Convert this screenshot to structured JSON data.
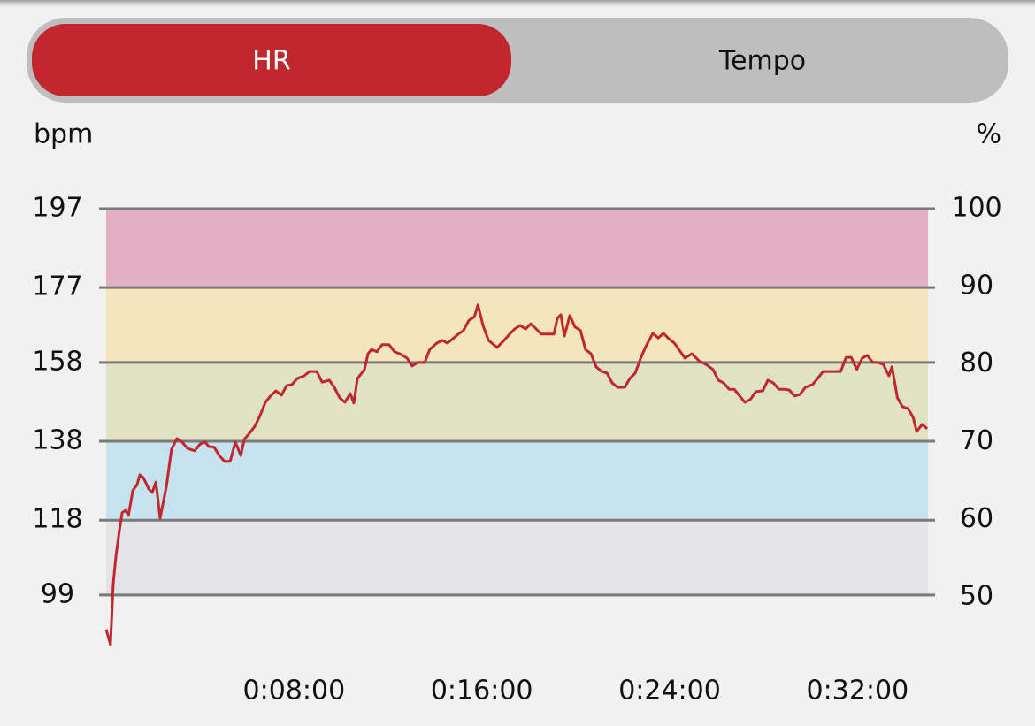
{
  "tabs": [
    "HR",
    "Tempo"
  ],
  "chart_data": {
    "type": "line",
    "y_label": "bpm",
    "y2_label": "%",
    "color": "#c0272f",
    "ylim": [
      78.8,
      197
    ],
    "yticks": [
      99,
      118,
      138,
      158,
      177,
      197
    ],
    "y2lim": [
      40,
      100
    ],
    "y2ticks": [
      50,
      60,
      70,
      80,
      90,
      100
    ],
    "xlim": [
      0,
      2100
    ],
    "xticks": [
      {
        "value": 480,
        "label": "0:08:00"
      },
      {
        "value": 960,
        "label": "0:16:00"
      },
      {
        "value": 1440,
        "label": "0:24:00"
      },
      {
        "value": 1920,
        "label": "0:32:00"
      }
    ],
    "grid": true,
    "zones": [
      {
        "from": 50,
        "to": 60,
        "color": "#e4e4e6"
      },
      {
        "from": 60,
        "to": 70,
        "color": "#c6e2ed"
      },
      {
        "from": 70,
        "to": 80,
        "color": "#dfe2c3"
      },
      {
        "from": 80,
        "to": 90,
        "color": "#f3e6bd"
      },
      {
        "from": 90,
        "to": 100,
        "color": "#e2afc2"
      }
    ],
    "x": [
      0,
      11,
      18,
      25,
      34,
      41,
      50,
      57,
      68,
      79,
      86,
      95,
      109,
      118,
      127,
      138,
      154,
      167,
      181,
      194,
      208,
      226,
      240,
      253,
      262,
      276,
      289,
      303,
      317,
      330,
      344,
      353,
      366,
      380,
      393,
      407,
      420,
      434,
      448,
      461,
      475,
      488,
      506,
      520,
      538,
      552,
      570,
      583,
      597,
      610,
      624,
      633,
      642,
      660,
      669,
      678,
      692,
      705,
      723,
      737,
      751,
      769,
      782,
      796,
      814,
      827,
      845,
      859,
      872,
      886,
      900,
      913,
      927,
      941,
      950,
      963,
      977,
      999,
      1017,
      1031,
      1044,
      1058,
      1072,
      1085,
      1099,
      1112,
      1130,
      1144,
      1153,
      1162,
      1171,
      1185,
      1198,
      1212,
      1225,
      1239,
      1252,
      1266,
      1280,
      1293,
      1307,
      1325,
      1338,
      1352,
      1366,
      1379,
      1397,
      1411,
      1424,
      1438,
      1452,
      1465,
      1479,
      1497,
      1515,
      1533,
      1551,
      1564,
      1578,
      1592,
      1605,
      1619,
      1632,
      1646,
      1660,
      1678,
      1691,
      1705,
      1719,
      1732,
      1746,
      1759,
      1773,
      1787,
      1805,
      1818,
      1832,
      1850,
      1863,
      1877,
      1891,
      1904,
      1918,
      1932,
      1945,
      1959,
      1972,
      1986,
      2000,
      2008,
      2022,
      2035,
      2049,
      2062,
      2071,
      2085,
      2098
    ],
    "values": [
      90.3,
      86.4,
      101.9,
      109,
      115.4,
      119.9,
      120.5,
      119.2,
      125.5,
      127,
      129.5,
      128.8,
      125.9,
      125,
      127.7,
      118.5,
      126.6,
      136,
      138.7,
      137.8,
      136.2,
      135.6,
      137.3,
      137.8,
      136.7,
      136.5,
      134.4,
      132.9,
      132.9,
      137.8,
      134.4,
      138.5,
      140,
      141.8,
      144.5,
      147.9,
      149.5,
      150.8,
      149.7,
      152.1,
      152.4,
      153.9,
      154.6,
      155.7,
      155.7,
      153,
      153.5,
      151.7,
      149,
      147.9,
      150.1,
      147.7,
      153.9,
      156.2,
      160.2,
      161.3,
      160.7,
      162.5,
      162.5,
      160.7,
      160.2,
      159.1,
      157.1,
      158,
      158,
      161.3,
      162.9,
      163.6,
      162.9,
      164,
      165.2,
      166.1,
      168.7,
      169.6,
      172.6,
      167.4,
      163.6,
      161.8,
      163.6,
      165.2,
      166.5,
      167.4,
      166.5,
      167.8,
      166.5,
      165.2,
      165.2,
      165.2,
      169.2,
      170.1,
      164.7,
      169.9,
      167,
      166.1,
      161.3,
      160.2,
      156.9,
      155.7,
      155.3,
      152.8,
      151.7,
      151.7,
      153.9,
      155.3,
      159.1,
      162,
      165.4,
      164.2,
      165.4,
      164,
      162.9,
      161.1,
      159.1,
      160.2,
      158.4,
      157.5,
      156.2,
      153.5,
      152.8,
      151.2,
      151.2,
      149.5,
      147.9,
      148.6,
      150.6,
      150.8,
      153.5,
      152.8,
      151.2,
      151.2,
      151,
      149.5,
      149.9,
      151.7,
      152.4,
      153.9,
      155.7,
      155.7,
      155.7,
      155.7,
      159.3,
      159.3,
      156.2,
      159.1,
      159.8,
      158,
      158,
      157.5,
      154.6,
      156.9,
      149,
      146.8,
      146.3,
      144.1,
      140.5,
      142.3,
      141.2
    ]
  }
}
